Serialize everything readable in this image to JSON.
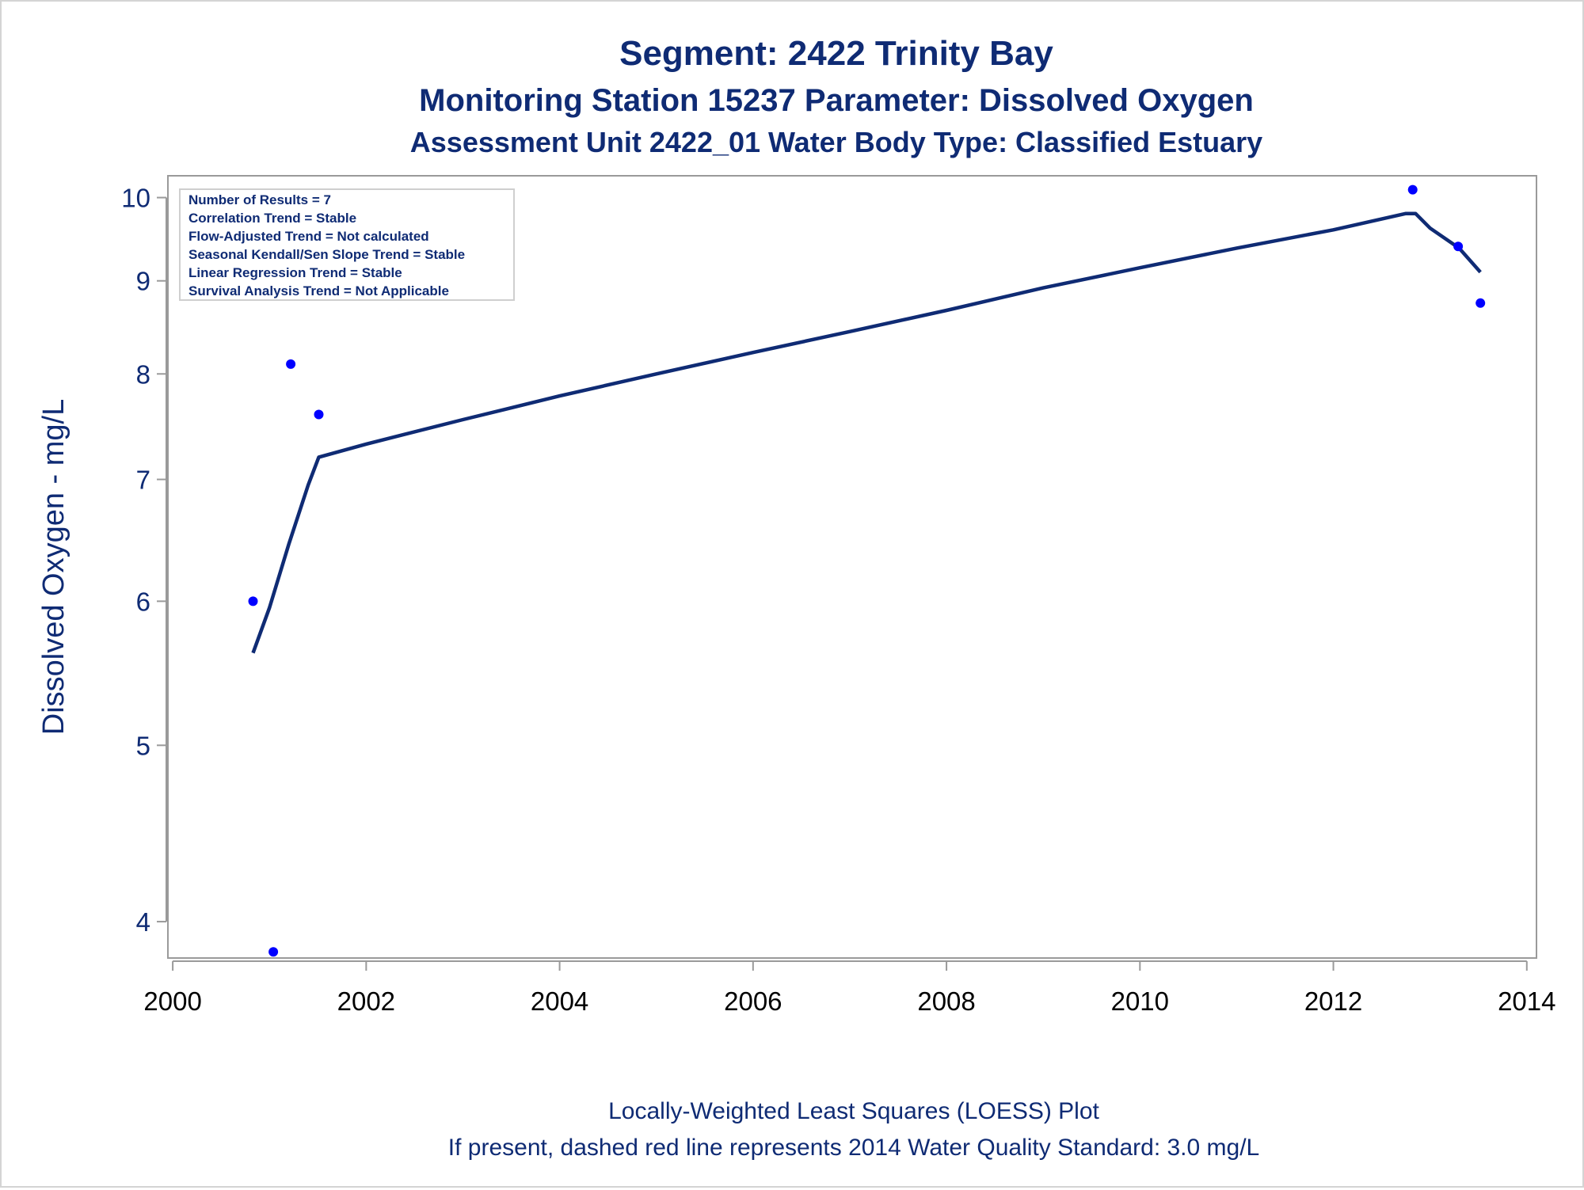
{
  "titles": {
    "line1": "Segment: 2422  Trinity Bay",
    "line2": "Monitoring Station 15237 Parameter: Dissolved Oxygen",
    "line3": "Assessment Unit 2422_01   Water Body Type: Classified Estuary"
  },
  "footnotes": {
    "line1": "Locally-Weighted Least Squares (LOESS) Plot",
    "line2": "If present, dashed red line represents 2014 Water Quality Standard: 3.0 mg/L"
  },
  "stats_box": [
    "Number of Results = 7",
    "Correlation Trend = Stable",
    "Flow-Adjusted Trend = Not calculated",
    "Seasonal Kendall/Sen Slope Trend = Stable",
    "Linear Regression Trend = Stable",
    "Survival Analysis Trend = Not Applicable"
  ],
  "colors": {
    "text": "#0f2b74",
    "line": "#0f2b74",
    "points": "#0000ff",
    "axes": "#9a9a9a"
  },
  "chart_data": {
    "type": "scatter",
    "title": "Segment: 2422  Trinity Bay",
    "xlabel": "",
    "ylabel": "Dissolved Oxygen - mg/L",
    "x_scale": "linear",
    "y_scale": "log",
    "xlim": [
      1999.95,
      2014.1
    ],
    "ylim": [
      3.82,
      10.28
    ],
    "x_ticks": [
      2000,
      2002,
      2004,
      2006,
      2008,
      2010,
      2012,
      2014
    ],
    "y_ticks": [
      4,
      5,
      6,
      7,
      8,
      9,
      10
    ],
    "grid": false,
    "series": [
      {
        "kind": "points",
        "x": [
          2000.83,
          2001.04,
          2001.22,
          2001.51,
          2012.82,
          2013.29,
          2013.52
        ],
        "y": [
          6.0,
          3.85,
          8.1,
          7.6,
          10.1,
          9.4,
          8.75
        ]
      },
      {
        "kind": "loess",
        "x": [
          2000.83,
          2001.0,
          2001.2,
          2001.4,
          2001.51,
          2002.0,
          2003.0,
          2004.0,
          2005.0,
          2006.0,
          2007.0,
          2008.0,
          2009.0,
          2010.0,
          2011.0,
          2012.0,
          2012.75,
          2012.85,
          2013.0,
          2013.3,
          2013.52
        ],
        "y": [
          5.62,
          5.95,
          6.45,
          6.95,
          7.2,
          7.32,
          7.55,
          7.78,
          8.0,
          8.22,
          8.44,
          8.67,
          8.92,
          9.15,
          9.38,
          9.6,
          9.8,
          9.8,
          9.62,
          9.38,
          9.1
        ]
      }
    ]
  }
}
